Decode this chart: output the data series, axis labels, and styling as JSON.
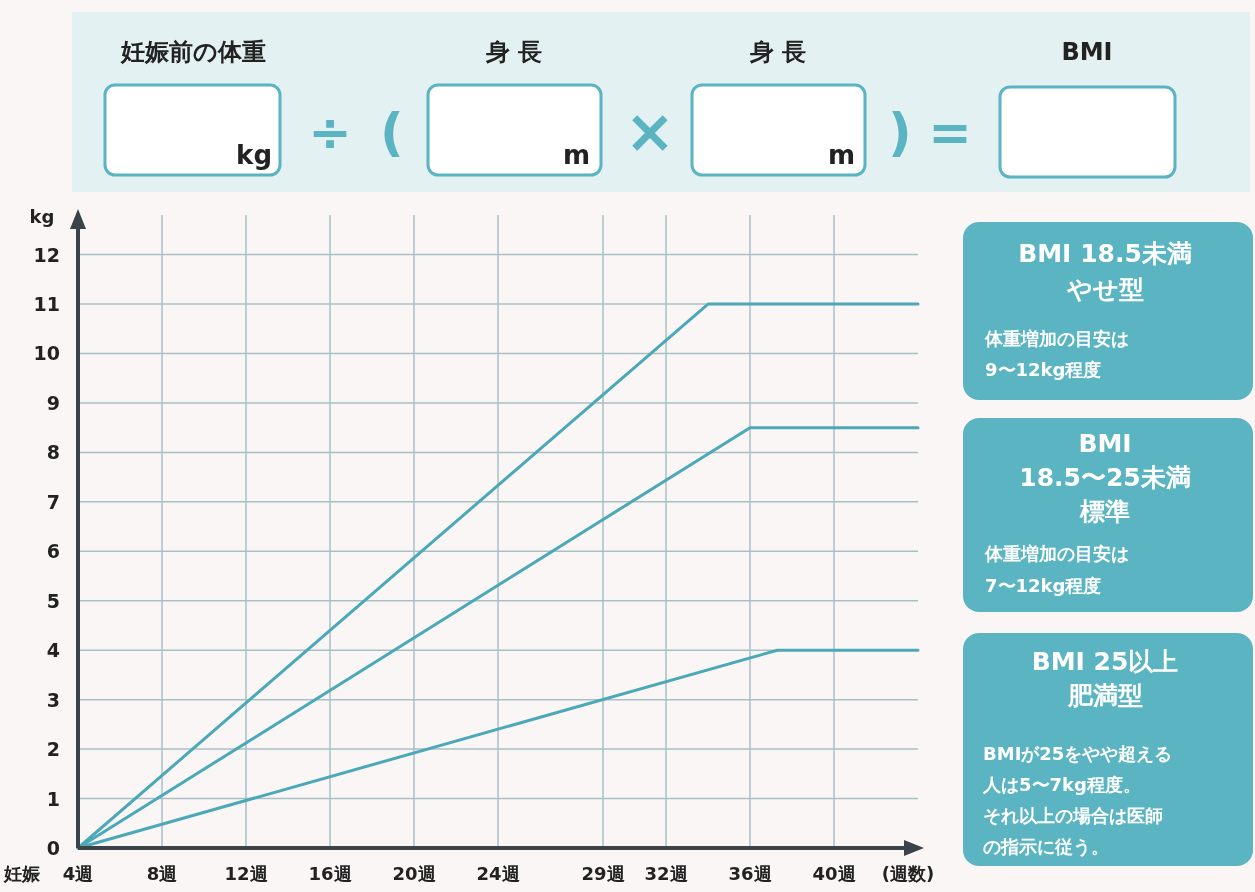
{
  "chart_data": {
    "type": "line",
    "xlabel": "(週数)",
    "ylabel": "kg",
    "xlim": [
      4,
      44
    ],
    "ylim": [
      0,
      12.8
    ],
    "grid": true,
    "xticks": [
      {
        "value": 4,
        "label": "4週"
      },
      {
        "value": 8,
        "label": "8週"
      },
      {
        "value": 12,
        "label": "12週"
      },
      {
        "value": 16,
        "label": "16週"
      },
      {
        "value": 20,
        "label": "20週"
      },
      {
        "value": 24,
        "label": "24週"
      },
      {
        "value": 29,
        "label": "29週"
      },
      {
        "value": 32,
        "label": "32週"
      },
      {
        "value": 36,
        "label": "36週"
      },
      {
        "value": 40,
        "label": "40週"
      }
    ],
    "yticks": [
      0,
      1,
      2,
      3,
      4,
      5,
      6,
      7,
      8,
      9,
      10,
      11,
      12
    ],
    "series": [
      {
        "color": "#4aa8b8",
        "x": [
          4,
          34,
          44
        ],
        "values": [
          0,
          11,
          11
        ]
      },
      {
        "color": "#4aa8b8",
        "x": [
          4,
          36,
          44
        ],
        "values": [
          0,
          8.5,
          8.5
        ]
      },
      {
        "color": "#4aa8b8",
        "x": [
          4,
          37.3,
          44
        ],
        "values": [
          0,
          4,
          4
        ]
      }
    ],
    "annotations": [
      "妊娠前の体重",
      "身 長",
      "身 長",
      "BMI",
      "kg",
      "m",
      "m",
      "÷",
      "(",
      "×",
      ")",
      "=",
      "BMI 18.5未満",
      "やせ型",
      "体重増加の目安は",
      "9〜12kg程度",
      "BMI",
      "18.5〜25未満",
      "標準",
      "体重増加の目安は",
      "7〜12kg程度",
      "BMI 25以上",
      "肥満型",
      "BMIが25をやや超える",
      "人は5〜7kg程度。",
      "それ以上の場合は医師",
      "の指示に従う。",
      "妊娠"
    ]
  }
}
